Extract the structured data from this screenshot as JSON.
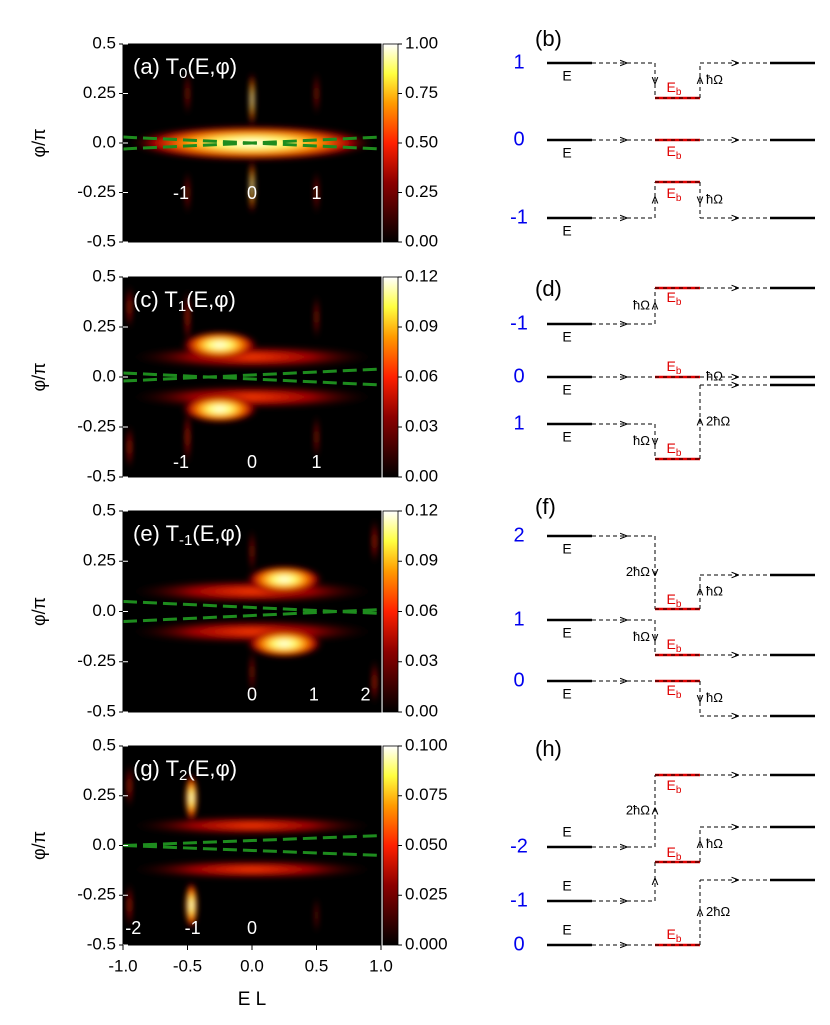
{
  "chart_data": [
    {
      "type": "heatmap",
      "title_prefix": "(a) T",
      "title_sub": "0",
      "title_suffix": "(E,φ)",
      "ylabel": "φ/π",
      "xlim": [
        -1,
        1
      ],
      "ylim": [
        -0.5,
        0.5
      ],
      "yticks": [
        -0.5,
        -0.25,
        {
          "value": 0,
          "label": "0.0"
        },
        0.25,
        0.5
      ],
      "colorbar_lim": [
        0,
        1
      ],
      "colorbar_ticks": [
        {
          "value": 0,
          "label": "0.00"
        },
        0.25,
        {
          "value": 0.5,
          "label": "0.50"
        },
        0.75,
        {
          "value": 1,
          "label": "1.00"
        }
      ],
      "annotations": [
        {
          "text": "-1",
          "x": -0.55,
          "y": -0.26
        },
        {
          "text": "0",
          "x": 0,
          "y": -0.26
        },
        {
          "text": "1",
          "x": 0.5,
          "y": -0.26
        }
      ],
      "lines": [
        {
          "x": [
            -1,
            1
          ],
          "values": [
            0.03,
            -0.03
          ]
        },
        {
          "x": [
            -1,
            1
          ],
          "values": [
            -0.03,
            0.03
          ]
        }
      ],
      "line_color": "#1e8c1e"
    },
    {
      "type": "heatmap",
      "title_prefix": "(c) T",
      "title_sub": "1",
      "title_suffix": "(E,φ)",
      "ylabel": "φ/π",
      "xlim": [
        -1,
        1
      ],
      "ylim": [
        -0.5,
        0.5
      ],
      "yticks": [
        -0.5,
        -0.25,
        {
          "value": 0,
          "label": "0.0"
        },
        0.25,
        0.5
      ],
      "colorbar_lim": [
        0,
        0.12
      ],
      "colorbar_ticks": [
        {
          "value": 0,
          "label": "0.00"
        },
        0.03,
        0.06,
        0.09,
        0.12
      ],
      "annotations": [
        {
          "text": "-1",
          "x": -0.55,
          "y": -0.43
        },
        {
          "text": "0",
          "x": 0,
          "y": -0.43
        },
        {
          "text": "1",
          "x": 0.5,
          "y": -0.43
        }
      ],
      "lines": [
        {
          "x": [
            -1,
            1
          ],
          "values": [
            0.02,
            -0.04
          ]
        },
        {
          "x": [
            -1,
            1
          ],
          "values": [
            -0.02,
            0.04
          ]
        }
      ],
      "line_color": "#1e8c1e"
    },
    {
      "type": "heatmap",
      "title_prefix": "(e) T",
      "title_sub": "-1",
      "title_suffix": "(E,φ)",
      "ylabel": "φ/π",
      "xlim": [
        -1,
        1
      ],
      "ylim": [
        -0.5,
        0.5
      ],
      "yticks": [
        -0.5,
        -0.25,
        {
          "value": 0,
          "label": "0.0"
        },
        0.25,
        0.5
      ],
      "colorbar_lim": [
        0,
        0.12
      ],
      "colorbar_ticks": [
        {
          "value": 0,
          "label": "0.00"
        },
        0.03,
        0.06,
        0.09,
        0.12
      ],
      "annotations": [
        {
          "text": "0",
          "x": 0,
          "y": -0.42
        },
        {
          "text": "1",
          "x": 0.48,
          "y": -0.42
        },
        {
          "text": "2",
          "x": 0.88,
          "y": -0.42
        }
      ],
      "lines": [
        {
          "x": [
            -1,
            1
          ],
          "values": [
            0.05,
            -0.01
          ]
        },
        {
          "x": [
            -1,
            1
          ],
          "values": [
            -0.05,
            0.01
          ]
        }
      ],
      "line_color": "#1e8c1e"
    },
    {
      "type": "heatmap",
      "title_prefix": "(g) T",
      "title_sub": "2",
      "title_suffix": "(E,φ)",
      "ylabel": "φ/π",
      "xlabel": "E L",
      "xlim": [
        -1,
        1
      ],
      "ylim": [
        -0.5,
        0.5
      ],
      "xticks": [
        {
          "value": -1,
          "label": "-1.0"
        },
        -0.5,
        {
          "value": 0,
          "label": "0.0"
        },
        0.5,
        {
          "value": 1,
          "label": "1.0"
        }
      ],
      "yticks": [
        -0.5,
        -0.25,
        {
          "value": 0,
          "label": "0.0"
        },
        0.25,
        0.5
      ],
      "colorbar_lim": [
        0,
        0.1
      ],
      "colorbar_ticks": [
        {
          "value": 0,
          "label": "0.000"
        },
        0.025,
        {
          "value": 0.05,
          "label": "0.050"
        },
        0.075,
        {
          "value": 0.1,
          "label": "0.100"
        }
      ],
      "annotations": [
        {
          "text": "-2",
          "x": -0.92,
          "y": -0.42
        },
        {
          "text": "-1",
          "x": -0.46,
          "y": -0.42
        },
        {
          "text": "0",
          "x": 0,
          "y": -0.42
        }
      ],
      "lines": [
        {
          "x": [
            -1,
            1
          ],
          "values": [
            0,
            0.05
          ]
        },
        {
          "x": [
            -1,
            1
          ],
          "values": [
            0,
            -0.05
          ]
        }
      ],
      "line_color": "#1e8c1e"
    }
  ],
  "diagrams": [
    {
      "label": "(b)",
      "rows": [
        {
          "index": "1",
          "level": "E",
          "bound": "E",
          "bound_sub": "b",
          "hop_out": "ħΩ"
        },
        {
          "index": "0",
          "level": "E",
          "bound": "E",
          "bound_sub": "b"
        },
        {
          "index": "-1",
          "level": "E",
          "bound": "E",
          "bound_sub": "b",
          "hop_out": "ħΩ"
        }
      ]
    },
    {
      "label": "(d)",
      "rows": [
        {
          "index": "-1",
          "level": "E",
          "bound": "E",
          "bound_sub": "b",
          "hop_in": "ħΩ"
        },
        {
          "index": "0",
          "level": "E",
          "bound": "E",
          "bound_sub": "b",
          "hop_out": "ħΩ"
        },
        {
          "index": "1",
          "level": "E",
          "bound": "E",
          "bound_sub": "b",
          "hop_in": "ħΩ",
          "hop_out": "2ħΩ"
        }
      ]
    },
    {
      "label": "(f)",
      "rows": [
        {
          "index": "2",
          "level": "E",
          "bound": "E",
          "bound_sub": "b",
          "hop_in": "2ħΩ",
          "hop_out": "ħΩ"
        },
        {
          "index": "1",
          "level": "E",
          "bound": "E",
          "bound_sub": "b",
          "hop_in": "ħΩ"
        },
        {
          "index": "0",
          "level": "E",
          "bound": "E",
          "bound_sub": "b",
          "hop_out": "ħΩ"
        }
      ]
    },
    {
      "label": "(h)",
      "rows": [
        {
          "index": "-2",
          "level": "E",
          "bound": "E",
          "bound_sub": "b",
          "hop_in": "2ħΩ"
        },
        {
          "index": "-1",
          "level": "E",
          "bound": "E",
          "bound_sub": "b",
          "hop_out": "ħΩ"
        },
        {
          "index": "0",
          "level": "E",
          "bound": "E",
          "bound_sub": "b",
          "hop_out": "2ħΩ"
        }
      ]
    }
  ]
}
